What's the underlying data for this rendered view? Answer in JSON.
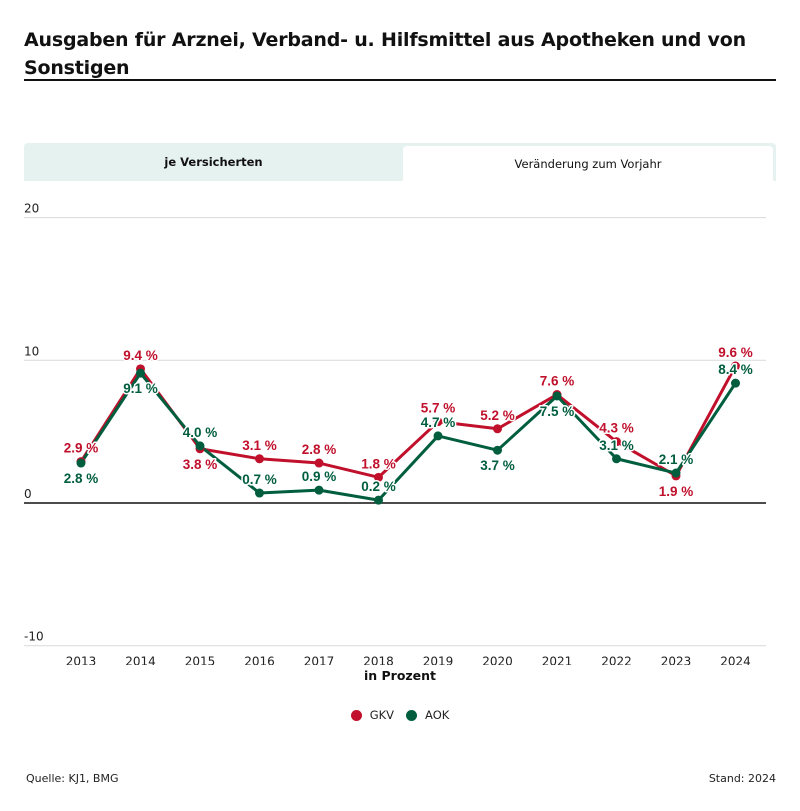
{
  "header": {
    "title": "Ausgaben für Arznei, Verband- u. Hilfsmittel aus Apotheken und von Sonstigen"
  },
  "tabs": [
    {
      "label": "je Versicherten",
      "active": false
    },
    {
      "label": "Veränderung zum Vorjahr",
      "active": true
    }
  ],
  "colors": {
    "gkv": "#c0102b",
    "aok": "#005e3f",
    "grid": "#d9d9d9",
    "zero_line": "#111111",
    "tab_bg": "#e6f2ef"
  },
  "chart_data": {
    "type": "line",
    "title": "Ausgaben für Arznei, Verband- u. Hilfsmittel aus Apotheken und von Sonstigen",
    "xlabel": "in Prozent",
    "ylabel": "",
    "categories": [
      "2013",
      "2014",
      "2015",
      "2016",
      "2017",
      "2018",
      "2019",
      "2020",
      "2021",
      "2022",
      "2023",
      "2024"
    ],
    "ylim": [
      -10,
      20
    ],
    "yticks": [
      {
        "value": 20,
        "label": "20"
      },
      {
        "value": 10,
        "label": "10"
      },
      {
        "value": 0,
        "label": "0"
      },
      {
        "value": -10,
        "label": "-10"
      }
    ],
    "grid": true,
    "legend_position": "bottom-center",
    "series": [
      {
        "name": "GKV",
        "color": "#c0102b",
        "values": [
          2.9,
          9.4,
          3.8,
          3.1,
          2.8,
          1.8,
          5.7,
          5.2,
          7.6,
          4.3,
          1.9,
          9.6
        ],
        "labels": [
          "2.9 %",
          "9.4 %",
          "3.8 %",
          "3.1 %",
          "2.8 %",
          "1.8 %",
          "5.7 %",
          "5.2 %",
          "7.6 %",
          "4.3 %",
          "1.9 %",
          "9.6 %"
        ],
        "label_side": [
          "above",
          "above",
          "below",
          "above",
          "above",
          "above",
          "above",
          "above",
          "above",
          "above",
          "below",
          "above"
        ]
      },
      {
        "name": "AOK",
        "color": "#005e3f",
        "values": [
          2.8,
          9.1,
          4.0,
          0.7,
          0.9,
          0.2,
          4.7,
          3.7,
          7.5,
          3.1,
          2.1,
          8.4
        ],
        "labels": [
          "2.8 %",
          "9.1 %",
          "4.0 %",
          "0.7 %",
          "0.9 %",
          "0.2 %",
          "4.7 %",
          "3.7 %",
          "7.5 %",
          "3.1 %",
          "2.1 %",
          "8.4 %"
        ],
        "label_side": [
          "below",
          "below",
          "above",
          "above",
          "above",
          "above",
          "above",
          "below",
          "below",
          "above",
          "above",
          "above"
        ]
      }
    ]
  },
  "legend": [
    {
      "name": "GKV",
      "color": "#c0102b"
    },
    {
      "name": "AOK",
      "color": "#005e3f"
    }
  ],
  "footer": {
    "source": "Quelle: KJ1, BMG",
    "stand": "Stand: 2024"
  }
}
